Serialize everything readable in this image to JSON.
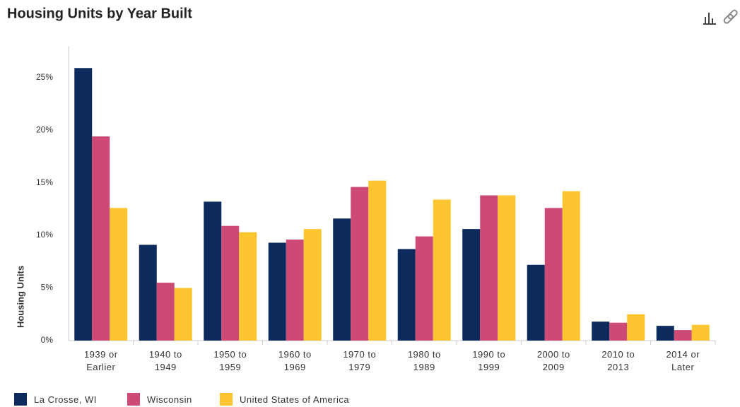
{
  "chart_data": {
    "type": "bar",
    "title": "Housing Units by Year Built",
    "ylabel": "Housing Units",
    "categories": [
      "1939 or Earlier",
      "1940 to 1949",
      "1950 to 1959",
      "1960 to 1969",
      "1970 to 1979",
      "1980 to 1989",
      "1990 to 1999",
      "2000 to 2009",
      "2010 to 2013",
      "2014 or Later"
    ],
    "series": [
      {
        "name": "La Crosse, WI",
        "color": "#0c2a5b",
        "values": [
          25.9,
          9.1,
          13.2,
          9.3,
          11.6,
          8.7,
          10.6,
          7.2,
          1.8,
          1.4
        ]
      },
      {
        "name": "Wisconsin",
        "color": "#cc4a74",
        "values": [
          19.4,
          5.5,
          10.9,
          9.6,
          14.6,
          9.9,
          13.8,
          12.6,
          1.7,
          1.0
        ]
      },
      {
        "name": "United States of America",
        "color": "#fdc530",
        "values": [
          12.6,
          5.0,
          10.3,
          10.6,
          15.2,
          13.4,
          13.8,
          14.2,
          2.5,
          1.5
        ]
      }
    ],
    "ylim": [
      0,
      28
    ],
    "yticks": [
      {
        "value": 0,
        "label": "0%"
      },
      {
        "value": 5,
        "label": "5%"
      },
      {
        "value": 10,
        "label": "10%"
      },
      {
        "value": 15,
        "label": "15%"
      },
      {
        "value": 20,
        "label": "20%"
      },
      {
        "value": 25,
        "label": "25%"
      }
    ],
    "grid": false,
    "legend": "bottom"
  }
}
